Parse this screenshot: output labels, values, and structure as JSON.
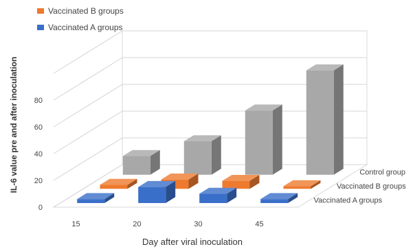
{
  "chart_data": {
    "type": "bar",
    "variant": "3d-clustered-depth",
    "title": "",
    "xlabel": "Day after viral inoculation",
    "ylabel": "IL-6 value pre and after inoculation",
    "ylim": [
      0,
      100
    ],
    "yticks": [
      0,
      20,
      40,
      60,
      80
    ],
    "grid": true,
    "categories": [
      "15",
      "20",
      "30",
      "45"
    ],
    "series": [
      {
        "name": "Vaccinated A groups",
        "values": [
          3,
          12,
          7,
          3
        ],
        "color": "#3a6fc9"
      },
      {
        "name": "Vaccinated B groups",
        "values": [
          3,
          7,
          6,
          2
        ],
        "color": "#ee7a2f"
      },
      {
        "name": "Control group",
        "values": [
          14,
          25,
          48,
          78
        ],
        "color": "#a8a8a8"
      }
    ],
    "legend": {
      "placement": "top-left",
      "entries": [
        "Vaccinated B groups",
        "Vaccinated A groups"
      ]
    }
  }
}
